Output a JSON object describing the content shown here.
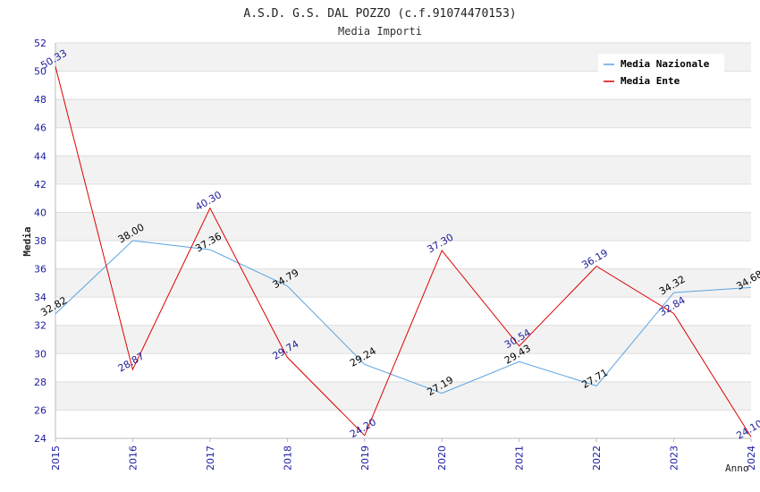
{
  "chart_data": {
    "type": "line",
    "title": "A.S.D. G.S. DAL POZZO (c.f.91074470153)",
    "subtitle": "Media Importi",
    "xlabel": "Anno",
    "ylabel": "Media",
    "x": [
      "2015",
      "2016",
      "2017",
      "2018",
      "2019",
      "2020",
      "2021",
      "2022",
      "2023",
      "2024"
    ],
    "ylim": [
      24,
      52
    ],
    "yticks": [
      "24",
      "26",
      "28",
      "30",
      "32",
      "34",
      "36",
      "38",
      "40",
      "42",
      "44",
      "46",
      "48",
      "50",
      "52"
    ],
    "grid": true,
    "legend_position": "top-right",
    "series": [
      {
        "name": "Media Nazionale",
        "color": "#5aa3e0",
        "label_color": "#000000",
        "values": [
          32.82,
          38.0,
          37.36,
          34.79,
          29.24,
          27.19,
          29.43,
          27.71,
          34.32,
          34.68
        ],
        "labels": [
          "32.82",
          "38.00",
          "37.36",
          "34.79",
          "29.24",
          "27.19",
          "29.43",
          "27.71",
          "34.32",
          "34.68"
        ]
      },
      {
        "name": "Media Ente",
        "color": "#dd0000",
        "label_color": "#1a1a99",
        "values": [
          50.33,
          28.87,
          40.3,
          29.74,
          24.2,
          37.3,
          30.54,
          36.19,
          32.84,
          24.1
        ],
        "labels": [
          "50.33",
          "28.87",
          "40.30",
          "29.74",
          "24.20",
          "37.30",
          "30.54",
          "36.19",
          "32.84",
          "24.10"
        ]
      }
    ]
  }
}
